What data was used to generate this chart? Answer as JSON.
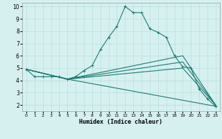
{
  "title": "",
  "xlabel": "Humidex (Indice chaleur)",
  "ylabel": "",
  "bg_color": "#d6f0f0",
  "grid_color": "#b8dede",
  "line_color": "#1a7a6e",
  "xlim": [
    -0.5,
    23.5
  ],
  "ylim": [
    1.5,
    10.3
  ],
  "yticks": [
    2,
    3,
    4,
    5,
    6,
    7,
    8,
    9,
    10
  ],
  "xticks": [
    0,
    1,
    2,
    3,
    4,
    5,
    6,
    7,
    8,
    9,
    10,
    11,
    12,
    13,
    14,
    15,
    16,
    17,
    18,
    19,
    20,
    21,
    22,
    23
  ],
  "series": [
    {
      "x": [
        0,
        1,
        2,
        3,
        4,
        5,
        6,
        7,
        8,
        9,
        10,
        11,
        12,
        13,
        14,
        15,
        16,
        17,
        18,
        19,
        20,
        21,
        22,
        23
      ],
      "y": [
        4.9,
        4.3,
        4.3,
        4.3,
        4.3,
        4.1,
        4.3,
        4.8,
        5.2,
        6.5,
        7.5,
        8.4,
        10.0,
        9.5,
        9.5,
        8.2,
        7.9,
        7.5,
        6.0,
        5.1,
        5.0,
        3.3,
        2.5,
        1.9
      ],
      "marker": true
    },
    {
      "x": [
        0,
        5,
        23
      ],
      "y": [
        4.9,
        4.1,
        1.9
      ],
      "marker": false
    },
    {
      "x": [
        0,
        5,
        19,
        23
      ],
      "y": [
        4.9,
        4.1,
        5.0,
        2.0
      ],
      "marker": false
    },
    {
      "x": [
        0,
        5,
        19,
        23
      ],
      "y": [
        4.9,
        4.1,
        5.5,
        2.0
      ],
      "marker": false
    },
    {
      "x": [
        0,
        5,
        19,
        23
      ],
      "y": [
        4.9,
        4.1,
        6.0,
        2.0
      ],
      "marker": false
    }
  ]
}
